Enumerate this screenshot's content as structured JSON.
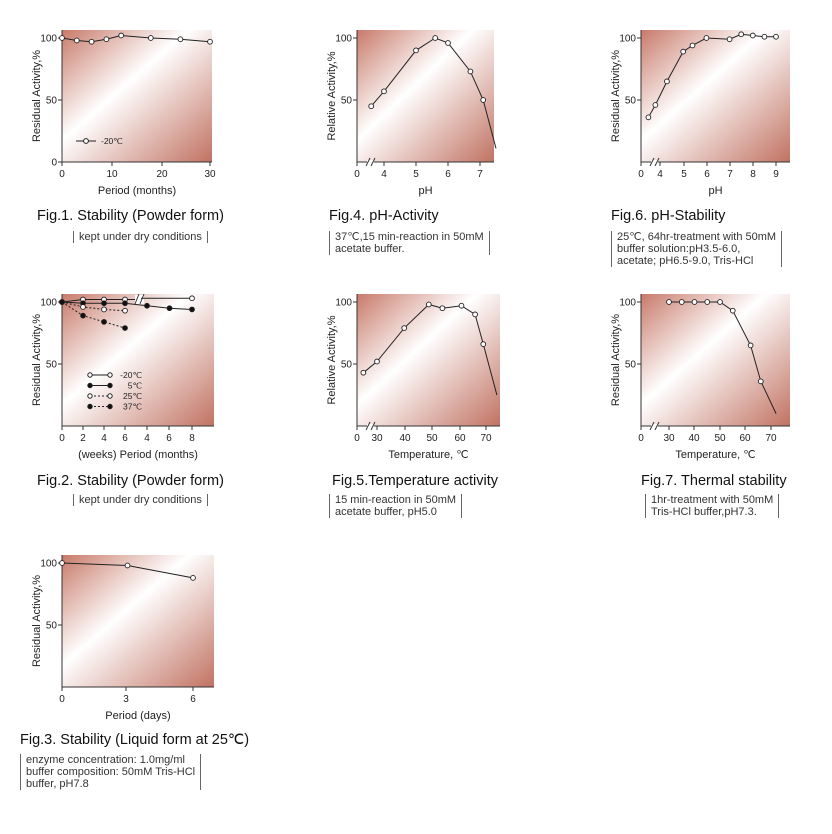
{
  "chart_data": [
    {
      "id": "fig1",
      "type": "line",
      "ylabel": "Residual Activity,%",
      "xlabel": "Period (months)",
      "x_ticks": [
        "0",
        "10",
        "20",
        "30"
      ],
      "y_ticks": [
        "0",
        "50",
        "100"
      ],
      "xlim": [
        0,
        30
      ],
      "ylim": [
        0,
        100
      ],
      "series": [
        {
          "name": "-20℃",
          "marker": "open",
          "dashed": false,
          "x": [
            0,
            3,
            6,
            9,
            12,
            18,
            24,
            30
          ],
          "y": [
            100,
            98,
            97,
            99,
            102,
            100,
            99,
            97
          ]
        }
      ],
      "legend": "bottom-left",
      "title": "Fig.1. Stability (Powder form)",
      "note": [
        "kept under dry conditions"
      ]
    },
    {
      "id": "fig2",
      "type": "line",
      "ylabel": "Residual Activity,%",
      "xlabel": "(weeks) Period (months)",
      "x_ticks": [
        "0",
        "2",
        "4",
        "6",
        "4",
        "6",
        "8"
      ],
      "y_ticks": [
        "50",
        "100"
      ],
      "ylim": [
        0,
        100
      ],
      "series": [
        {
          "name": "-20℃",
          "marker": "open",
          "dashed": false,
          "x": [
            "0w",
            "2w",
            "4w",
            "6w",
            "8m"
          ],
          "y": [
            100,
            102,
            102,
            102,
            103
          ]
        },
        {
          "name": "5℃",
          "marker": "filled",
          "dashed": false,
          "x": [
            "0w",
            "2w",
            "4w",
            "6w",
            "4m",
            "6m",
            "8m"
          ],
          "y": [
            100,
            99,
            99,
            99,
            97,
            95,
            94
          ]
        },
        {
          "name": "25℃",
          "marker": "open",
          "dashed": true,
          "x": [
            "0w",
            "2w",
            "4w",
            "6w"
          ],
          "y": [
            100,
            96,
            94,
            93
          ]
        },
        {
          "name": "37℃",
          "marker": "filled",
          "dashed": true,
          "x": [
            "0w",
            "2w",
            "4w",
            "6w"
          ],
          "y": [
            100,
            89,
            84,
            79
          ]
        }
      ],
      "legend": "bottom-left",
      "title": "Fig.2. Stability (Powder form)",
      "note": [
        "kept under dry conditions"
      ]
    },
    {
      "id": "fig3",
      "type": "line",
      "ylabel": "Residual Activity,%",
      "xlabel": "Period (days)",
      "x_ticks": [
        "0",
        "3",
        "6"
      ],
      "y_ticks": [
        "50",
        "100"
      ],
      "xlim": [
        0,
        6.4
      ],
      "ylim": [
        0,
        100
      ],
      "series": [
        {
          "name": "",
          "marker": "open",
          "dashed": false,
          "x": [
            0,
            3,
            6
          ],
          "y": [
            100,
            98,
            88
          ]
        }
      ],
      "title": "Fig.3. Stability (Liquid form at 25℃)",
      "note": [
        "enzyme concentration: 1.0mg/ml",
        "buffer composition: 50mM Tris-HCl",
        "buffer, pH7.8"
      ]
    },
    {
      "id": "fig4",
      "type": "line",
      "ylabel": "Relative Activity,%",
      "xlabel": "pH",
      "x_ticks": [
        "0",
        "4",
        "5",
        "6",
        "7"
      ],
      "y_ticks": [
        "50",
        "100"
      ],
      "ylim": [
        0,
        100
      ],
      "series": [
        {
          "name": "",
          "marker": "open",
          "dashed": false,
          "x": [
            3.6,
            4.0,
            5.0,
            5.6,
            6.0,
            6.7,
            7.1,
            7.5
          ],
          "y": [
            45,
            57,
            90,
            100,
            96,
            73,
            50,
            11
          ]
        }
      ],
      "title": "Fig.4. pH-Activity",
      "note": [
        "37℃,15 min-reaction in 50mM",
        "acetate buffer."
      ]
    },
    {
      "id": "fig5",
      "type": "line",
      "ylabel": "Relative Activity,%",
      "xlabel": "Temperature, ℃",
      "x_ticks": [
        "0",
        "30",
        "40",
        "50",
        "60",
        "70"
      ],
      "y_ticks": [
        "50",
        "100"
      ],
      "ylim": [
        0,
        100
      ],
      "series": [
        {
          "name": "",
          "marker": "open",
          "dashed": false,
          "x": [
            25,
            30,
            40,
            49,
            54,
            61,
            66,
            69,
            74
          ],
          "y": [
            43,
            52,
            79,
            98,
            95,
            97,
            90,
            66,
            25
          ]
        }
      ],
      "title": "Fig.5.Temperature activity",
      "note": [
        "15 min-reaction in 50mM",
        "acetate buffer, pH5.0"
      ]
    },
    {
      "id": "fig6",
      "type": "line",
      "ylabel": "Residual Activity,%",
      "xlabel": "pH",
      "x_ticks": [
        "0",
        "4",
        "5",
        "6",
        "7",
        "8",
        "9"
      ],
      "y_ticks": [
        "50",
        "100"
      ],
      "ylim": [
        0,
        100
      ],
      "series": [
        {
          "name": "",
          "marker": "open",
          "dashed": false,
          "x": [
            3.5,
            3.8,
            4.3,
            5.0,
            5.4,
            6.0,
            7.0,
            7.5,
            8.0,
            8.5,
            9.0
          ],
          "y": [
            36,
            46,
            65,
            89,
            94,
            100,
            99,
            103,
            102,
            101,
            101
          ]
        }
      ],
      "title": "Fig.6. pH-Stability",
      "note": [
        "25℃, 64hr-treatment with 50mM",
        "buffer solution:pH3.5-6.0,",
        "acetate; pH6.5-9.0, Tris-HCl"
      ]
    },
    {
      "id": "fig7",
      "type": "line",
      "ylabel": "Residual Activity,%",
      "xlabel": "Temperature, ℃",
      "x_ticks": [
        "0",
        "30",
        "40",
        "50",
        "60",
        "70"
      ],
      "y_ticks": [
        "50",
        "100"
      ],
      "ylim": [
        0,
        100
      ],
      "series": [
        {
          "name": "",
          "marker": "open",
          "dashed": false,
          "x": [
            30,
            35,
            40,
            45,
            50,
            55,
            62,
            66,
            72
          ],
          "y": [
            100,
            100,
            100,
            100,
            100,
            93,
            65,
            36,
            10
          ]
        }
      ],
      "title": "Fig.7. Thermal stability",
      "note": [
        "1hr-treatment with 50mM",
        "Tris-HCl buffer,pH7.3."
      ]
    }
  ]
}
